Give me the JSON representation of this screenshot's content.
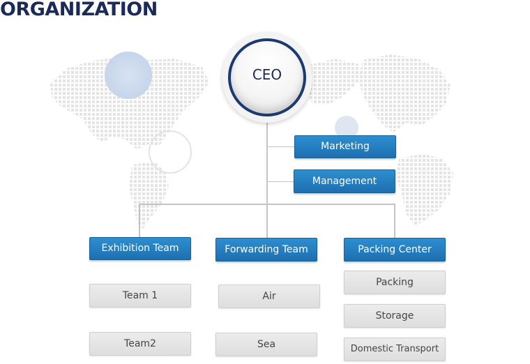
{
  "page": {
    "title": "ORGANIZATION"
  },
  "colors": {
    "title": "#1a2a5a",
    "ceo_ring": "#1c3a72",
    "department_box": "#1e6fb0",
    "unit_box": "#e4e4e4",
    "connector": "#c4c4c4",
    "background_map": "#e6e6e6"
  },
  "org": {
    "ceo": "CEO",
    "staff": [
      {
        "label": "Marketing"
      },
      {
        "label": "Management"
      }
    ],
    "departments": [
      {
        "label": "Exhibition Team",
        "units": [
          "Team 1",
          "Team2"
        ]
      },
      {
        "label": "Forwarding Team",
        "units": [
          "Air",
          "Sea"
        ]
      },
      {
        "label": "Packing Center",
        "units": [
          "Packing",
          "Storage",
          "Domestic Transport"
        ]
      }
    ]
  },
  "icons": {
    "background": "world-map-icon"
  }
}
